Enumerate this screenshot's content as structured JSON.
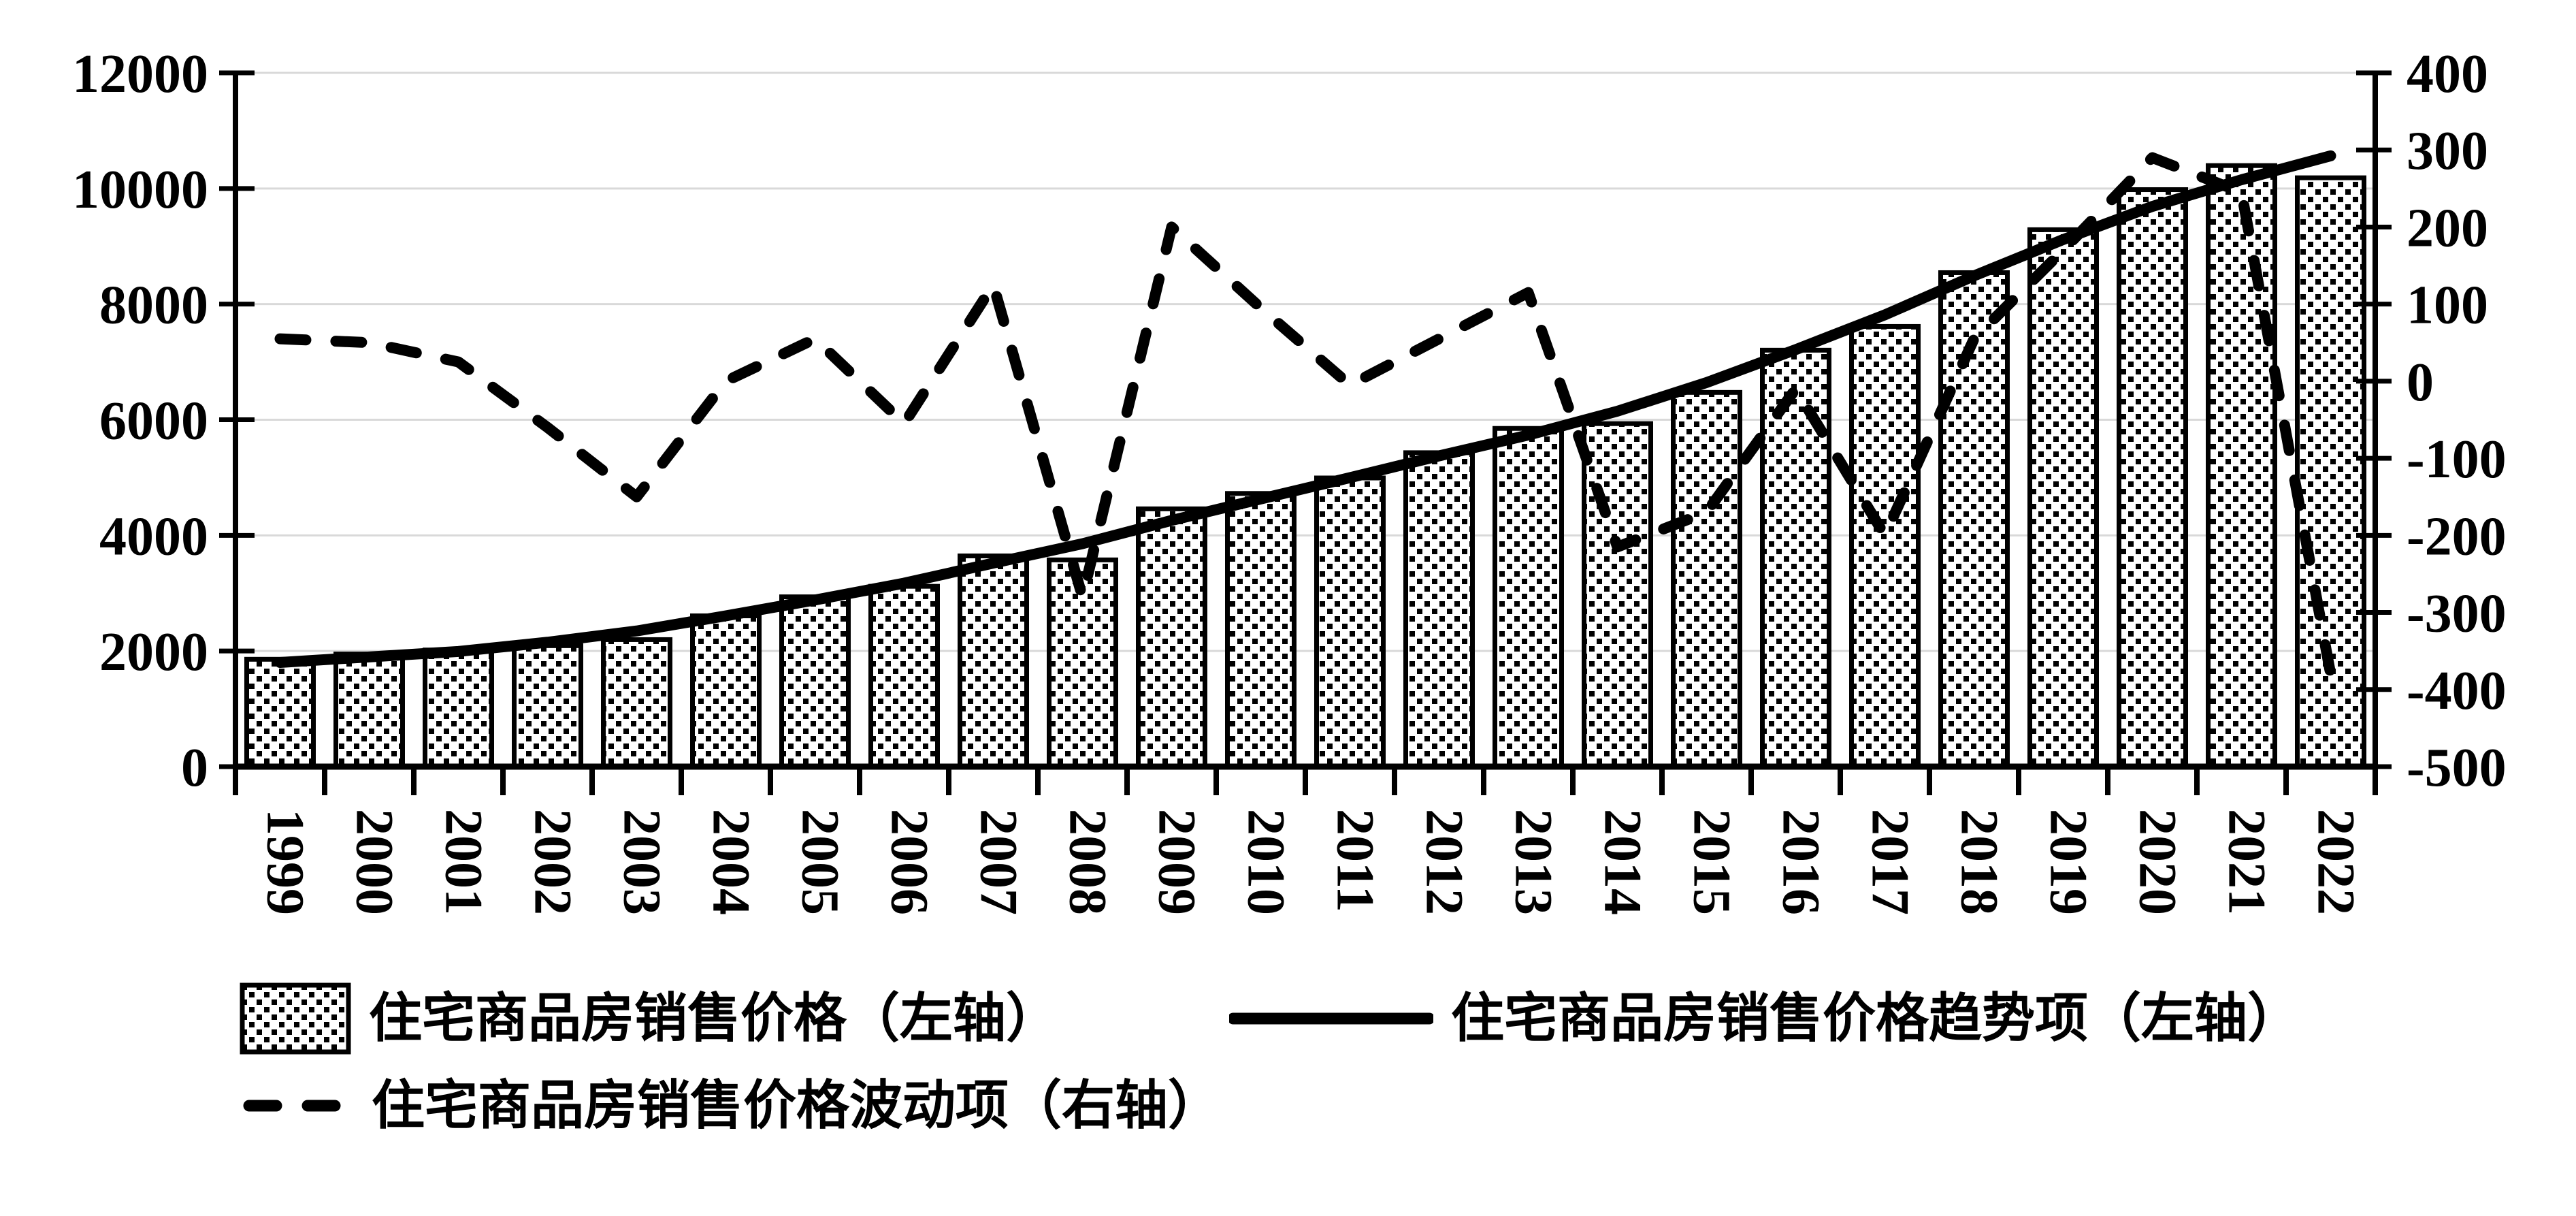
{
  "chart_data": {
    "type": "bar",
    "title": "",
    "categories": [
      "1999",
      "2000",
      "2001",
      "2002",
      "2003",
      "2004",
      "2005",
      "2006",
      "2007",
      "2008",
      "2009",
      "2010",
      "2011",
      "2012",
      "2013",
      "2014",
      "2015",
      "2016",
      "2017",
      "2018",
      "2019",
      "2020",
      "2021",
      "2022"
    ],
    "series": [
      {
        "name": "住宅商品房销售价格（左轴）",
        "type": "bar",
        "axis": "left",
        "fill": "dotted-pattern",
        "values": [
          1857,
          1948,
          2017,
          2092,
          2197,
          2608,
          2937,
          3119,
          3645,
          3576,
          4459,
          4725,
          4993,
          5430,
          5850,
          5933,
          6473,
          7203,
          7614,
          8544,
          9287,
          9980,
          10396,
          10185
        ]
      },
      {
        "name": "住宅商品房销售价格趋势项（左轴）",
        "type": "line",
        "style": "solid",
        "axis": "left",
        "values": [
          1802,
          1898,
          1992,
          2152,
          2347,
          2608,
          2882,
          3174,
          3520,
          3856,
          4259,
          4630,
          4998,
          5375,
          5735,
          6148,
          6643,
          7213,
          7814,
          8489,
          9117,
          9690,
          10151,
          10565
        ]
      },
      {
        "name": "住宅商品房销售价格波动项（右轴）",
        "type": "line",
        "style": "dashed",
        "axis": "right",
        "values": [
          55,
          50,
          25,
          -60,
          -150,
          0,
          55,
          -55,
          125,
          -280,
          200,
          95,
          -5,
          55,
          115,
          -215,
          -170,
          -10,
          -200,
          55,
          170,
          290,
          245,
          -380
        ]
      }
    ],
    "left_axis": {
      "min": 0,
      "max": 12000,
      "step": 2000,
      "tick_labels": [
        "12000",
        "10000",
        "8000",
        "6000",
        "4000",
        "2000",
        "0"
      ]
    },
    "right_axis": {
      "min": -500,
      "max": 400,
      "step": 100,
      "tick_labels": [
        "400",
        "300",
        "200",
        "100",
        "0",
        "-100",
        "-200",
        "-300",
        "-400",
        "-500"
      ]
    },
    "grid": true,
    "legend_position": "bottom",
    "colors": {
      "ink": "#000000",
      "gridline": "#d9d9d9",
      "background": "#ffffff"
    }
  }
}
